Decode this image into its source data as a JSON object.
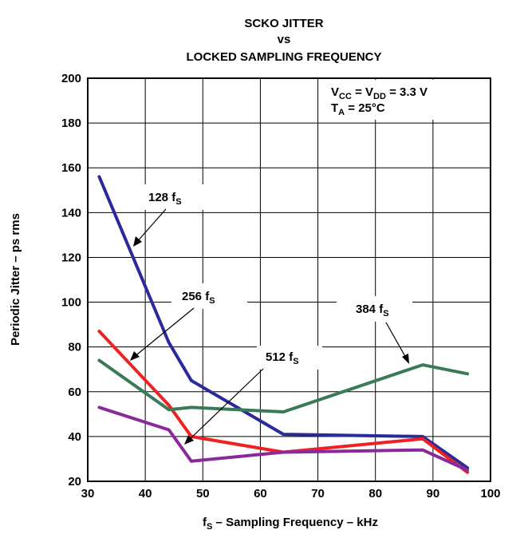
{
  "chart_data": {
    "type": "line",
    "title": [
      "SCKO JITTER",
      "vs",
      "LOCKED SAMPLING FREQUENCY"
    ],
    "xlabel": {
      "main": "f",
      "sub": "S",
      "rest": " – Sampling Frequency – kHz"
    },
    "ylabel": "Periodic Jitter – ps rms",
    "xlim": [
      30,
      100
    ],
    "ylim": [
      20,
      200
    ],
    "xticks": [
      30,
      40,
      50,
      60,
      70,
      80,
      90,
      100
    ],
    "yticks": [
      20,
      40,
      60,
      80,
      100,
      120,
      140,
      160,
      180,
      200
    ],
    "grid": true,
    "conditions": {
      "line1": {
        "a": "V",
        "a_sub": "CC",
        "b": " = V",
        "b_sub": "DD",
        "c": " = 3.3 V"
      },
      "line2": {
        "a": "T",
        "a_sub": "A",
        "b": " = 25°C"
      }
    },
    "series": [
      {
        "name": "128 fS",
        "label_main": "128 f",
        "label_sub": "S",
        "color": "#2a2a9a",
        "x": [
          32,
          44.1,
          48,
          64,
          88.2,
          96
        ],
        "y": [
          156,
          82,
          65,
          41,
          40,
          26
        ]
      },
      {
        "name": "256 fS",
        "label_main": "256 f",
        "label_sub": "S",
        "color": "#ee2222",
        "x": [
          32,
          44.1,
          48,
          64,
          88.2,
          96
        ],
        "y": [
          87,
          54,
          40,
          33,
          39,
          24
        ]
      },
      {
        "name": "384 fS",
        "label_main": "384 f",
        "label_sub": "S",
        "color": "#3b7a57",
        "x": [
          32,
          44.1,
          48,
          64,
          88.2,
          96
        ],
        "y": [
          74,
          52,
          53,
          51,
          72,
          68
        ]
      },
      {
        "name": "512 fS",
        "label_main": "512 f",
        "label_sub": "S",
        "color": "#8a2a9a",
        "x": [
          32,
          44.1,
          48,
          64,
          88.2,
          96
        ],
        "y": [
          53,
          43,
          29,
          33,
          34,
          25
        ]
      }
    ]
  }
}
